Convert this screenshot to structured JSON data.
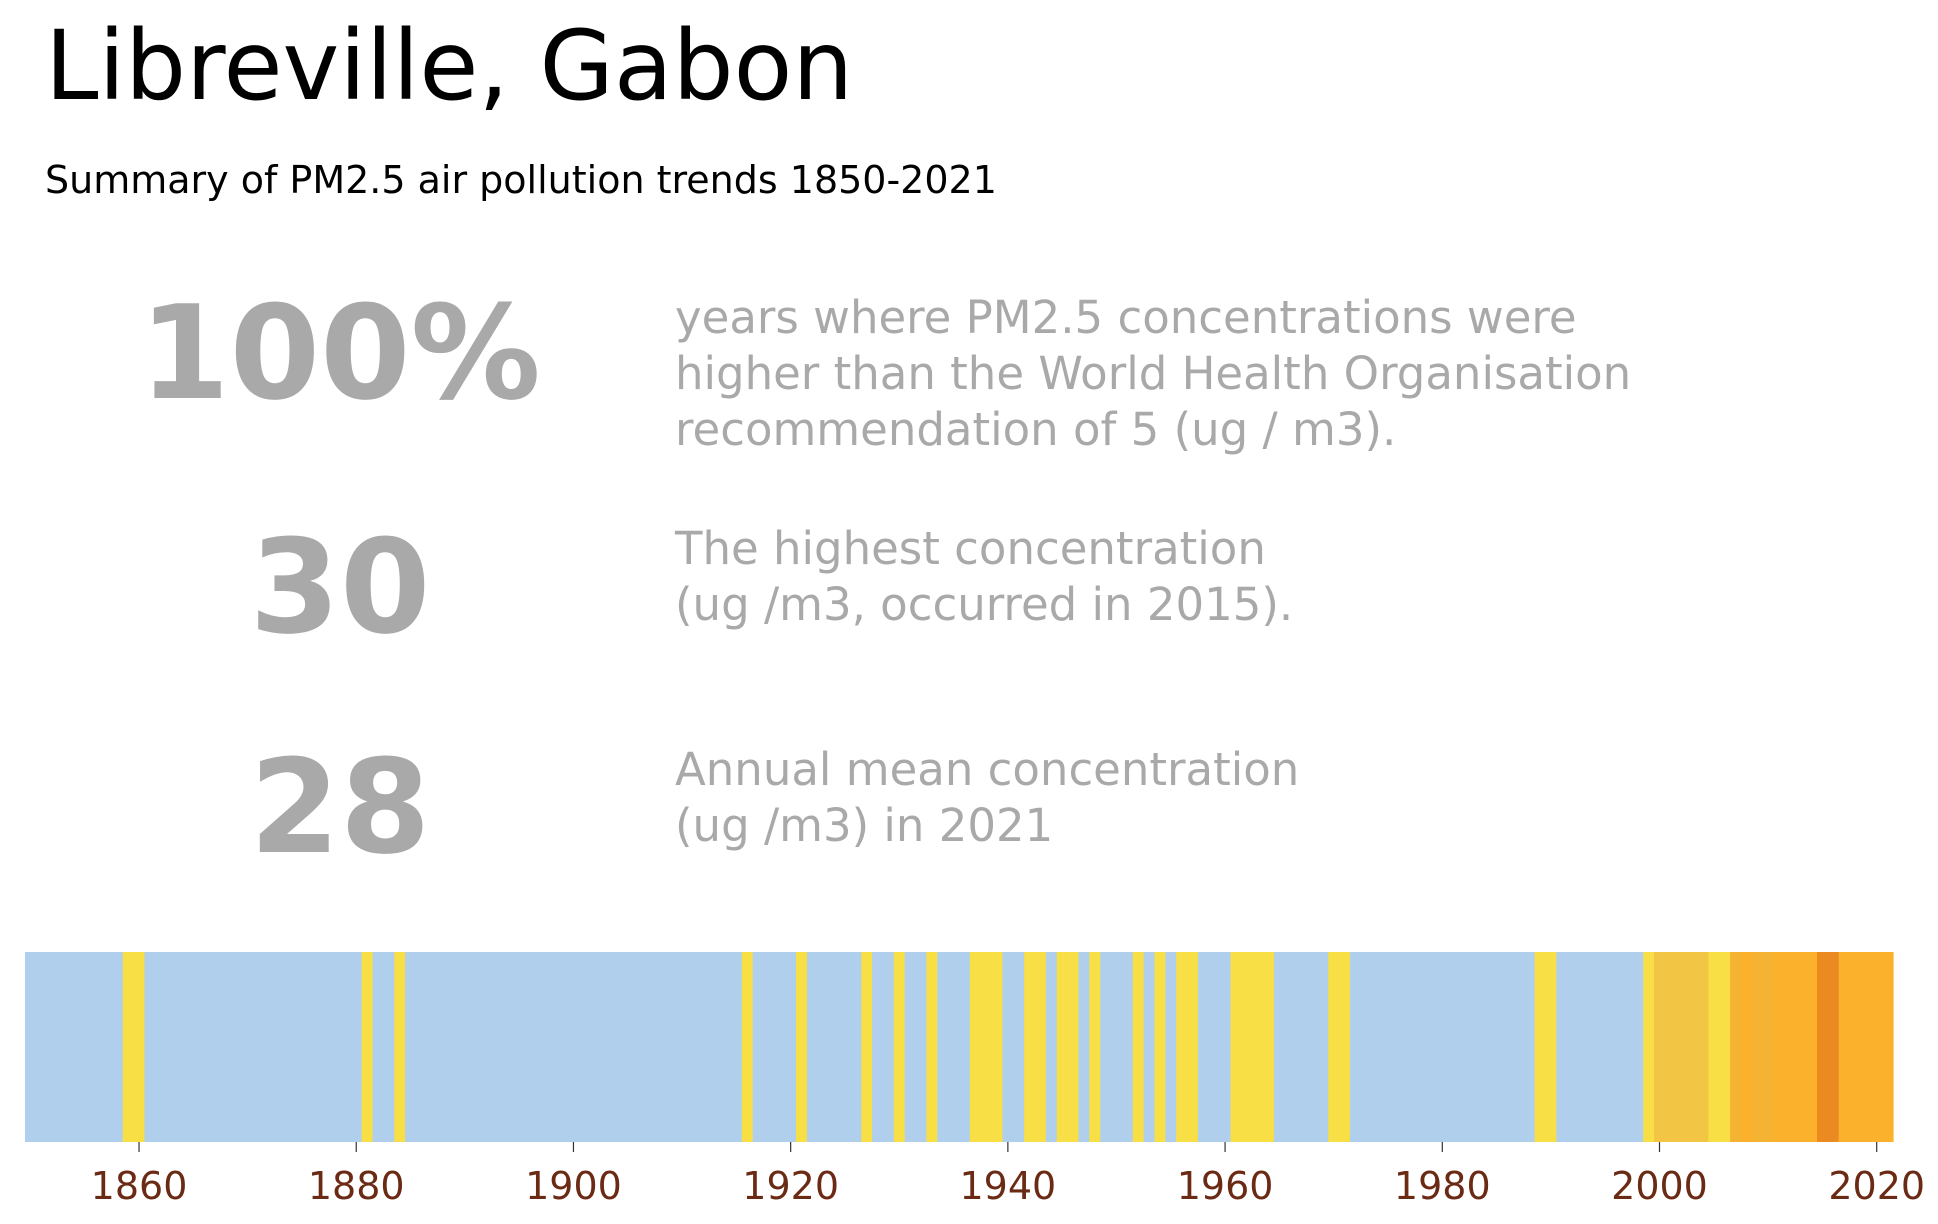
{
  "header": {
    "title": "Libreville, Gabon",
    "subtitle": "Summary of PM2.5 air pollution trends 1850-2021"
  },
  "stats": [
    {
      "value": "100%",
      "description": "years where PM2.5 concentrations were\nhigher than the World Health Organisation\nrecommendation of 5 (ug / m3)."
    },
    {
      "value": "30",
      "description": "The highest concentration\n(ug /m3, occurred in 2015)."
    },
    {
      "value": "28",
      "description": "Annual mean concentration\n(ug /m3) in 2021"
    }
  ],
  "colors": {
    "stat_text": "#a9a9a9",
    "tick_label": "#6b2a14",
    "band_low": "#b0cfec",
    "band_1": "#f8df45",
    "band_2": "#f2c545",
    "band_3": "#f5b333",
    "band_4": "#fcb12d",
    "band_5": "#ec8a22"
  },
  "chart_data": {
    "type": "heatmap",
    "title": "",
    "xlabel": "",
    "ylabel": "",
    "x_range": [
      1850,
      2021
    ],
    "x_ticks": [
      "1860",
      "1880",
      "1900",
      "1920",
      "1940",
      "1960",
      "1980",
      "2000",
      "2020"
    ],
    "y_ticks": [],
    "grid": false,
    "legend": "none",
    "value_field": "color band (0 = light blue lowest, 5 = dark orange highest)",
    "segments": [
      {
        "start": 1850,
        "end": 1859,
        "band": 0
      },
      {
        "start": 1859,
        "end": 1861,
        "band": 1
      },
      {
        "start": 1861,
        "end": 1881,
        "band": 0
      },
      {
        "start": 1881,
        "end": 1882,
        "band": 1
      },
      {
        "start": 1882,
        "end": 1884,
        "band": 0
      },
      {
        "start": 1884,
        "end": 1885,
        "band": 1
      },
      {
        "start": 1885,
        "end": 1916,
        "band": 0
      },
      {
        "start": 1916,
        "end": 1917,
        "band": 1
      },
      {
        "start": 1917,
        "end": 1921,
        "band": 0
      },
      {
        "start": 1921,
        "end": 1922,
        "band": 1
      },
      {
        "start": 1922,
        "end": 1927,
        "band": 0
      },
      {
        "start": 1927,
        "end": 1928,
        "band": 1
      },
      {
        "start": 1928,
        "end": 1930,
        "band": 0
      },
      {
        "start": 1930,
        "end": 1931,
        "band": 1
      },
      {
        "start": 1931,
        "end": 1933,
        "band": 0
      },
      {
        "start": 1933,
        "end": 1934,
        "band": 1
      },
      {
        "start": 1934,
        "end": 1937,
        "band": 0
      },
      {
        "start": 1937,
        "end": 1940,
        "band": 1
      },
      {
        "start": 1940,
        "end": 1942,
        "band": 0
      },
      {
        "start": 1942,
        "end": 1944,
        "band": 1
      },
      {
        "start": 1944,
        "end": 1945,
        "band": 0
      },
      {
        "start": 1945,
        "end": 1947,
        "band": 1
      },
      {
        "start": 1947,
        "end": 1948,
        "band": 0
      },
      {
        "start": 1948,
        "end": 1949,
        "band": 1
      },
      {
        "start": 1949,
        "end": 1952,
        "band": 0
      },
      {
        "start": 1952,
        "end": 1953,
        "band": 1
      },
      {
        "start": 1953,
        "end": 1954,
        "band": 0
      },
      {
        "start": 1954,
        "end": 1955,
        "band": 1
      },
      {
        "start": 1955,
        "end": 1956,
        "band": 0
      },
      {
        "start": 1956,
        "end": 1958,
        "band": 1
      },
      {
        "start": 1958,
        "end": 1961,
        "band": 0
      },
      {
        "start": 1961,
        "end": 1965,
        "band": 1
      },
      {
        "start": 1965,
        "end": 1970,
        "band": 0
      },
      {
        "start": 1970,
        "end": 1972,
        "band": 1
      },
      {
        "start": 1972,
        "end": 1989,
        "band": 0
      },
      {
        "start": 1989,
        "end": 1991,
        "band": 1
      },
      {
        "start": 1991,
        "end": 1999,
        "band": 0
      },
      {
        "start": 1999,
        "end": 2000,
        "band": 1
      },
      {
        "start": 2000,
        "end": 2005,
        "band": 2
      },
      {
        "start": 2005,
        "end": 2007,
        "band": 1
      },
      {
        "start": 2007,
        "end": 2008,
        "band": 3
      },
      {
        "start": 2008,
        "end": 2009,
        "band": 4
      },
      {
        "start": 2009,
        "end": 2011,
        "band": 3
      },
      {
        "start": 2011,
        "end": 2015,
        "band": 4
      },
      {
        "start": 2015,
        "end": 2017,
        "band": 5
      },
      {
        "start": 2017,
        "end": 2022,
        "band": 4
      }
    ]
  }
}
